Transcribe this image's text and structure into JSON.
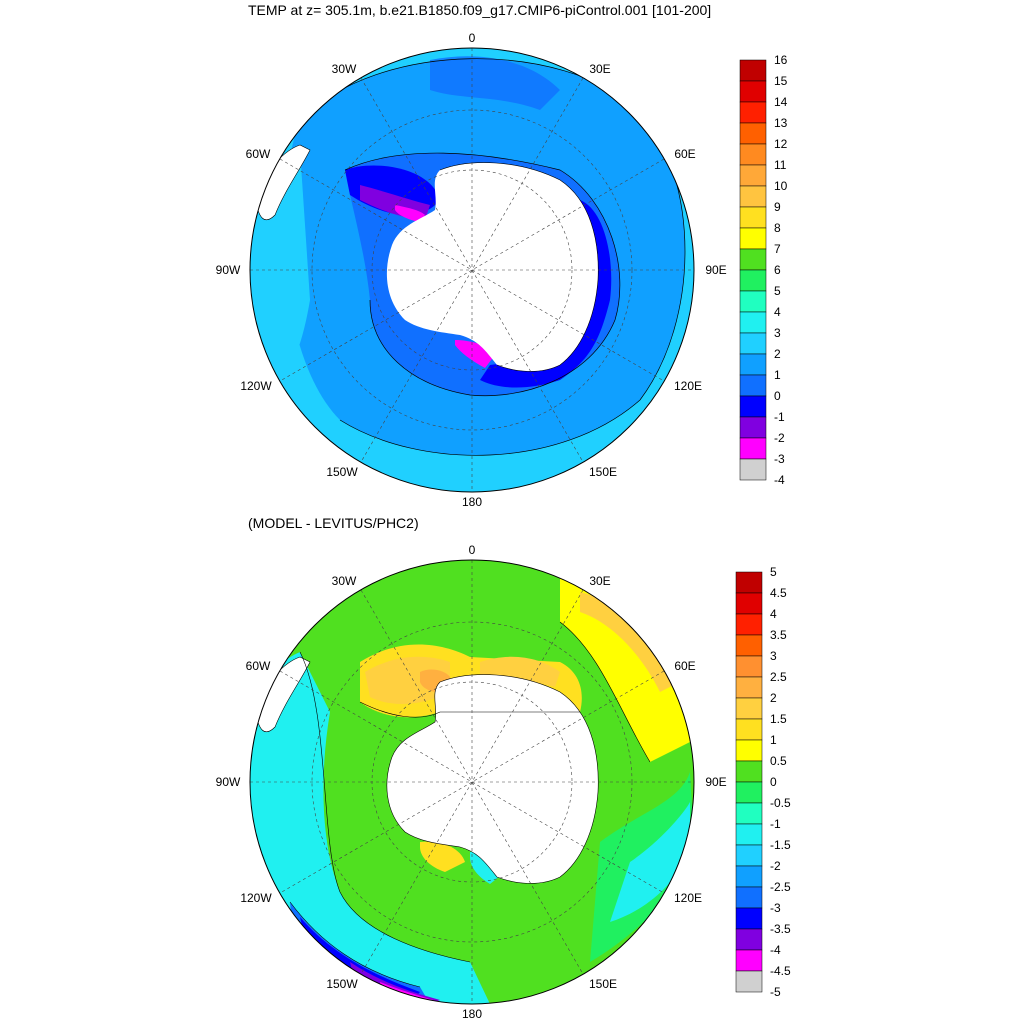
{
  "top_panel": {
    "title": "TEMP at z= 305.1m, b.e21.B1850.f09_g17.CMIP6-piControl.001 [101-200]",
    "lon_labels": [
      "0",
      "30E",
      "60E",
      "90E",
      "120E",
      "150E",
      "180",
      "150W",
      "120W",
      "90W",
      "60W",
      "30W"
    ],
    "colorbar": {
      "labels": [
        "16",
        "15",
        "14",
        "13",
        "12",
        "11",
        "10",
        "9",
        "8",
        "7",
        "6",
        "5",
        "4",
        "3",
        "2",
        "1",
        "0",
        "-1",
        "-2",
        "-3",
        "-4"
      ],
      "colors": [
        "#c00000",
        "#e00000",
        "#ff2000",
        "#ff6000",
        "#ff8a20",
        "#ffa838",
        "#ffc440",
        "#ffe020",
        "#ffff00",
        "#50e020",
        "#20f060",
        "#20ffc0",
        "#20f0f0",
        "#20d0ff",
        "#10a0ff",
        "#1070ff",
        "#0000ff",
        "#8000e0",
        "#ff00ff",
        "#d0d0d0",
        "#707070"
      ]
    }
  },
  "bottom_panel": {
    "title": "(MODEL - LEVITUS/PHC2)",
    "lon_labels": [
      "0",
      "30E",
      "60E",
      "90E",
      "120E",
      "150E",
      "180",
      "150W",
      "120W",
      "90W",
      "60W",
      "30W"
    ],
    "colorbar": {
      "labels": [
        "5",
        "4.5",
        "4",
        "3.5",
        "3",
        "2.5",
        "2",
        "1.5",
        "1",
        "0.5",
        "0",
        "-0.5",
        "-1",
        "-1.5",
        "-2",
        "-2.5",
        "-3",
        "-3.5",
        "-4",
        "-4.5",
        "-5"
      ],
      "colors": [
        "#c00000",
        "#e00000",
        "#ff2000",
        "#ff6000",
        "#ff9030",
        "#ffb040",
        "#ffd040",
        "#ffe020",
        "#ffff00",
        "#50e020",
        "#20f060",
        "#20ffc0",
        "#20f0f0",
        "#20d0ff",
        "#10a0ff",
        "#1070ff",
        "#0000ff",
        "#8000e0",
        "#ff00ff",
        "#d0d0d0",
        "#707070"
      ]
    }
  }
}
